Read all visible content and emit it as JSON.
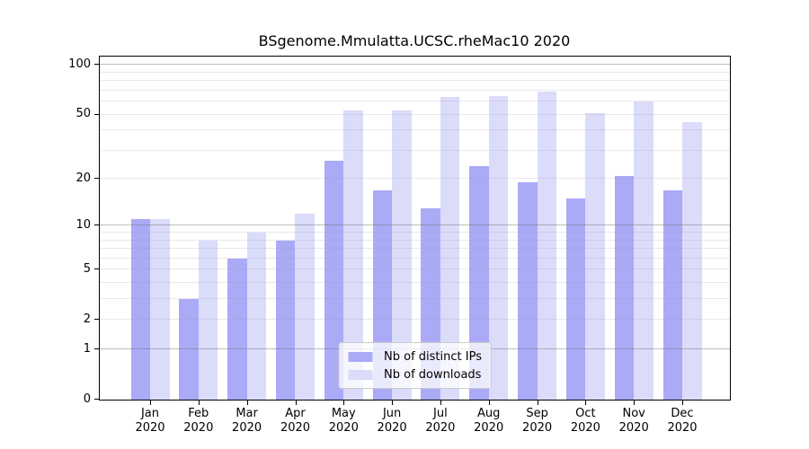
{
  "chart_data": {
    "type": "bar",
    "title": "BSgenome.Mmulatta.UCSC.rheMac10 2020",
    "categories": [
      "Jan",
      "Feb",
      "Mar",
      "Apr",
      "May",
      "Jun",
      "Jul",
      "Aug",
      "Sep",
      "Oct",
      "Nov",
      "Dec"
    ],
    "x_year_label": "2020",
    "series": [
      {
        "name": "Nb of distinct IPs",
        "color": "#aaaaf6",
        "values": [
          11,
          3,
          6,
          8,
          26,
          17,
          13,
          24,
          19,
          15,
          21,
          17
        ]
      },
      {
        "name": "Nb of downloads",
        "color": "#dbdbfa",
        "values": [
          11,
          8,
          9,
          12,
          53,
          53,
          64,
          65,
          69,
          51,
          60,
          45
        ]
      }
    ],
    "yscale": "log1p",
    "ylim": [
      0,
      112.5
    ],
    "y_ticks": [
      100,
      50,
      20,
      10,
      5,
      2,
      1,
      0
    ],
    "grid": {
      "major_values": [
        1,
        10,
        100
      ],
      "minor_values": [
        2,
        3,
        4,
        5,
        6,
        7,
        8,
        9,
        20,
        30,
        40,
        50,
        60,
        70,
        80,
        90
      ],
      "major_color": "#6e6e6e",
      "minor_color": "#9a9aa8"
    },
    "legend_position": "lower center",
    "grid_on": true
  }
}
